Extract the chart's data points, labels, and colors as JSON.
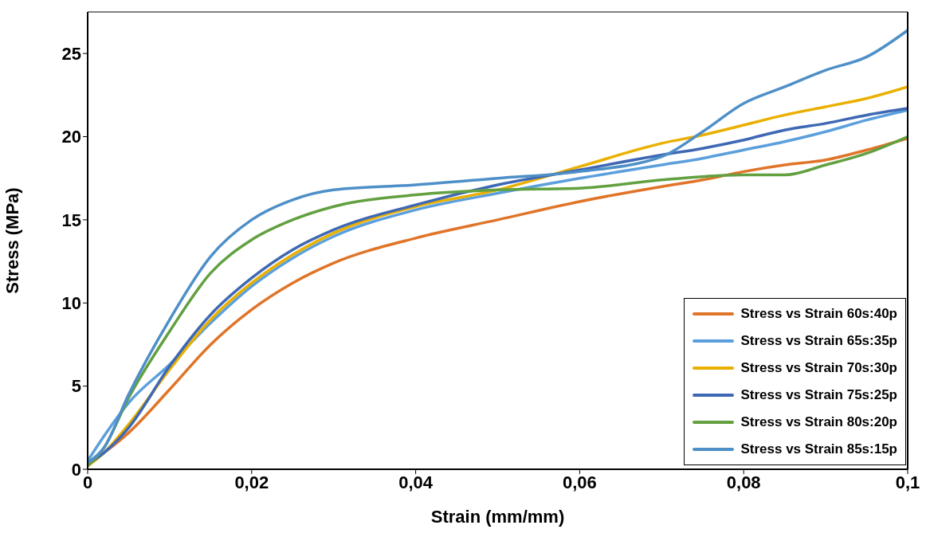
{
  "chart_data": {
    "type": "line",
    "xlabel": "Strain (mm/mm)",
    "ylabel": "Stress (MPa)",
    "xlim": [
      0,
      0.1
    ],
    "xticks": [
      {
        "value": 0,
        "label": "0"
      },
      {
        "value": 0.02,
        "label": "0,02"
      },
      {
        "value": 0.04,
        "label": "0,04"
      },
      {
        "value": 0.06,
        "label": "0,06"
      },
      {
        "value": 0.08,
        "label": "0,08"
      },
      {
        "value": 0.1,
        "label": "0,1"
      }
    ],
    "ylim": [
      0,
      27.5
    ],
    "yticks": [
      0,
      5,
      10,
      15,
      20,
      25
    ],
    "grid": false,
    "legend": "bottom right",
    "marker": "none",
    "line_style": "solid",
    "x": [
      0,
      0.002,
      0.005,
      0.01,
      0.015,
      0.02,
      0.025,
      0.03,
      0.04,
      0.05,
      0.06,
      0.07,
      0.075,
      0.08,
      0.085,
      0.09,
      0.095,
      0.1
    ],
    "series": [
      {
        "name": "Stress vs Strain 60s:40p",
        "color": "#e07428",
        "values": [
          0.3,
          1.0,
          2.2,
          4.8,
          7.5,
          9.6,
          11.2,
          12.4,
          13.9,
          15.0,
          16.1,
          17.0,
          17.4,
          17.9,
          18.3,
          18.6,
          19.2,
          19.9
        ]
      },
      {
        "name": "Stress vs Strain 65s:35p",
        "color": "#5b9fdc",
        "values": [
          0.5,
          2.0,
          4.0,
          6.3,
          8.8,
          11.0,
          12.7,
          14.0,
          15.6,
          16.6,
          17.5,
          18.3,
          18.7,
          19.2,
          19.7,
          20.3,
          21.0,
          21.6
        ]
      },
      {
        "name": "Stress vs Strain 70s:30p",
        "color": "#eab000",
        "values": [
          0.2,
          1.0,
          2.7,
          6.0,
          9.0,
          11.2,
          12.9,
          14.2,
          15.8,
          16.8,
          18.2,
          19.6,
          20.1,
          20.7,
          21.3,
          21.8,
          22.3,
          23.0
        ]
      },
      {
        "name": "Stress vs Strain 75s:25p",
        "color": "#3e68b4",
        "values": [
          0.3,
          1.0,
          2.5,
          6.2,
          9.3,
          11.5,
          13.2,
          14.4,
          15.9,
          17.1,
          18.0,
          18.9,
          19.3,
          19.8,
          20.4,
          20.8,
          21.3,
          21.7
        ]
      },
      {
        "name": "Stress vs Strain 80s:20p",
        "color": "#62a040",
        "values": [
          0.2,
          1.3,
          4.3,
          8.3,
          11.8,
          13.8,
          15.0,
          15.8,
          16.5,
          16.8,
          16.9,
          17.4,
          17.6,
          17.7,
          17.7,
          18.3,
          19.0,
          20.0
        ]
      },
      {
        "name": "Stress vs Strain 85s:15p",
        "color": "#4e8fc8",
        "values": [
          0.4,
          1.3,
          4.5,
          9.0,
          12.8,
          15.0,
          16.2,
          16.8,
          17.1,
          17.5,
          17.9,
          18.8,
          20.3,
          22.0,
          23.0,
          24.0,
          24.8,
          26.4
        ]
      }
    ]
  }
}
